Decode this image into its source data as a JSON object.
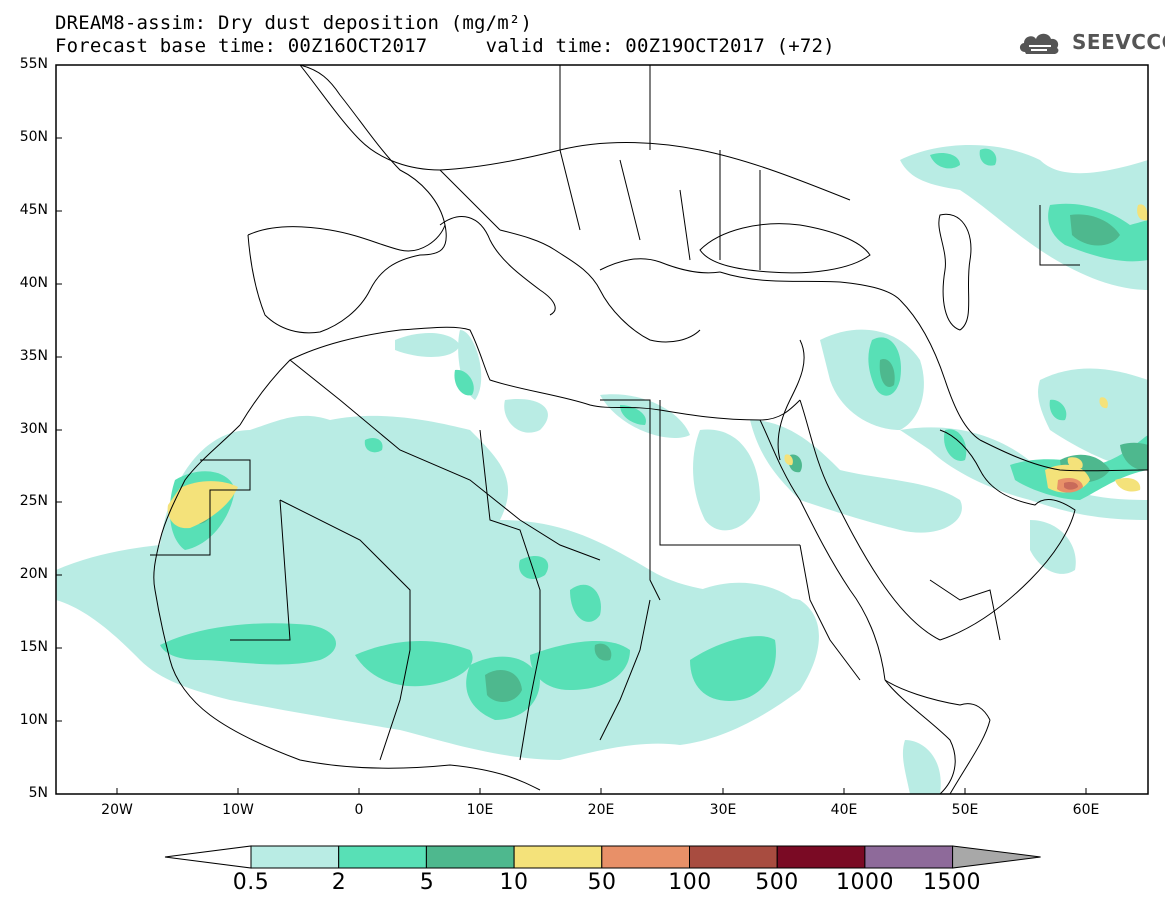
{
  "header": {
    "title_line1": "DREAM8-assim: Dry dust deposition (mg/m²)",
    "title_line2": "Forecast base time: 00Z16OCT2017     valid time: 00Z19OCT2017 (+72)"
  },
  "logo": {
    "text": "SEEVCCC",
    "icon": "cloud-logo-icon"
  },
  "map": {
    "lat_labels": [
      "55N",
      "50N",
      "45N",
      "40N",
      "35N",
      "30N",
      "25N",
      "20N",
      "15N",
      "10N",
      "5N"
    ],
    "lon_labels": [
      "20W",
      "10W",
      "0",
      "10E",
      "20E",
      "30E",
      "40E",
      "50E",
      "60E"
    ],
    "extent": {
      "lon_min": -25,
      "lon_max": 65,
      "lat_min": 5,
      "lat_max": 55
    }
  },
  "legend": {
    "labels": [
      "0.5",
      "2",
      "5",
      "10",
      "50",
      "100",
      "500",
      "1000",
      "1500"
    ],
    "colors": [
      "#ffffff",
      "#b9ece4",
      "#58e0b6",
      "#4eb88e",
      "#f4e27a",
      "#e89068",
      "#a84c40",
      "#7a0a24",
      "#8e6a9a",
      "#a8a8a8"
    ]
  }
}
